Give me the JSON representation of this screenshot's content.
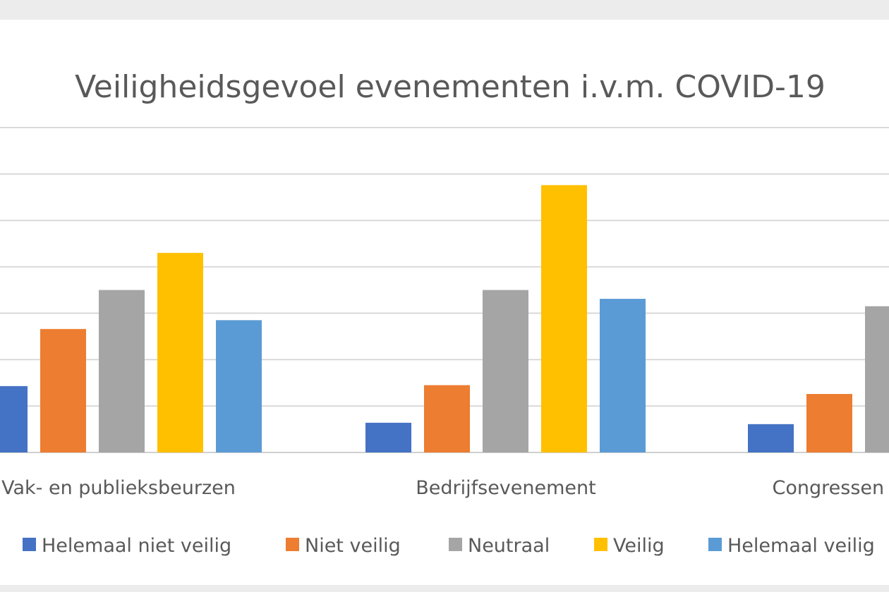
{
  "chart_data": {
    "type": "bar",
    "title": "Veiligheidsgevoel evenementen i.v.m. COVID-19",
    "xlabel": "",
    "ylabel": "",
    "ylim": [
      0,
      70
    ],
    "grid": true,
    "legend_position": "bottom",
    "categories": [
      "Vak- en publieksbeurzen",
      "Bedrijfsevenement",
      "Congressen en"
    ],
    "series": [
      {
        "name": "Helemaal niet veilig",
        "color": "#4472c4",
        "values": [
          14.3,
          6.4,
          6.1
        ]
      },
      {
        "name": "Niet veilig",
        "color": "#ed7d31",
        "values": [
          26.6,
          14.5,
          12.6
        ]
      },
      {
        "name": "Neutraal",
        "color": "#a5a5a5",
        "values": [
          35.0,
          35.0,
          31.5
        ]
      },
      {
        "name": "Veilig",
        "color": "#ffc000",
        "values": [
          43.0,
          57.6,
          null
        ]
      },
      {
        "name": "Helemaal veilig",
        "color": "#5b9bd5",
        "values": [
          28.5,
          33.1,
          null
        ]
      }
    ]
  }
}
